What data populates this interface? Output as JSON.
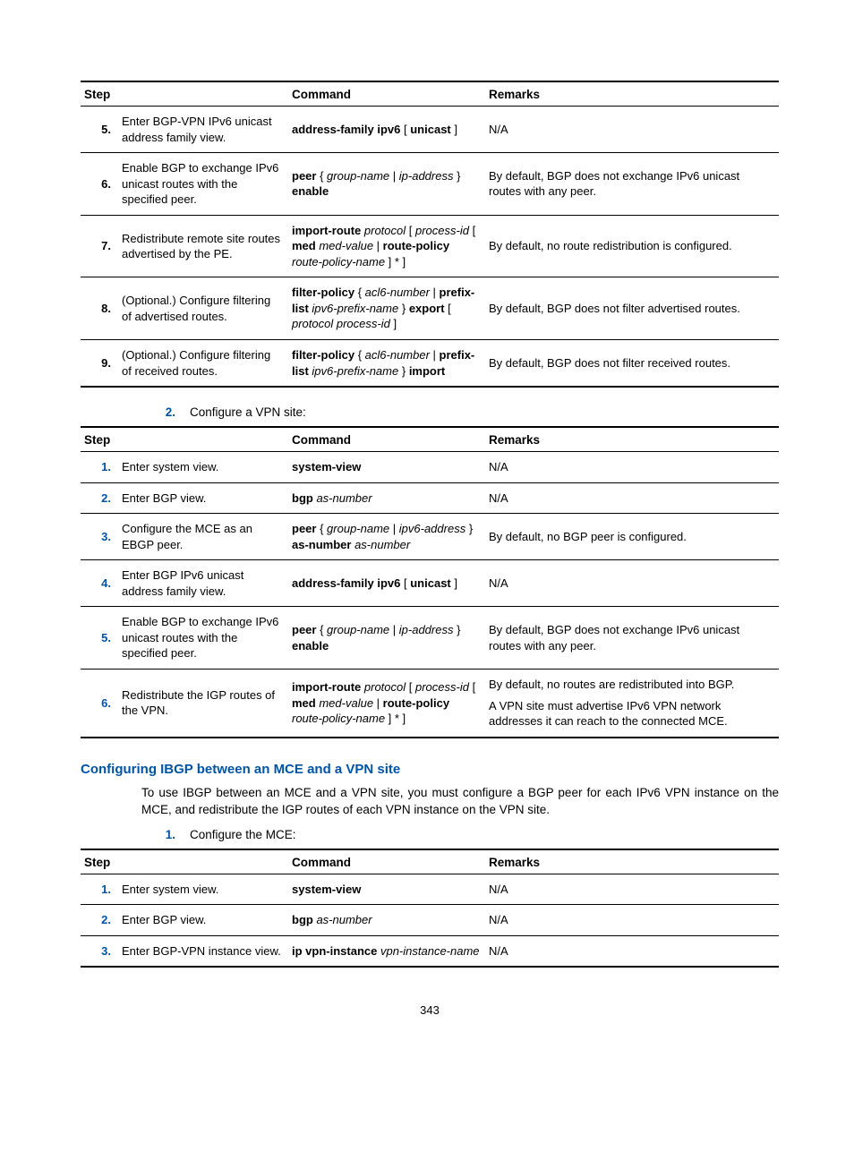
{
  "page_number": "343",
  "tables": [
    {
      "headers": {
        "step": "Step",
        "command": "Command",
        "remarks": "Remarks"
      },
      "rows": [
        {
          "num": "5.",
          "desc": "Enter BGP-VPN IPv6 unicast address family view.",
          "command_segments": [
            {
              "t": "address-family ipv6",
              "s": "bold"
            },
            {
              "t": " [ ",
              "s": ""
            },
            {
              "t": "unicast",
              "s": "bold"
            },
            {
              "t": " ]",
              "s": ""
            }
          ],
          "remarks": [
            {
              "line": "N/A"
            }
          ]
        },
        {
          "num": "6.",
          "desc": "Enable BGP to exchange IPv6 unicast routes with the specified peer.",
          "command_segments": [
            {
              "t": "peer",
              "s": "bold"
            },
            {
              "t": " { ",
              "s": ""
            },
            {
              "t": "group-name",
              "s": "ital"
            },
            {
              "t": " | ",
              "s": ""
            },
            {
              "t": "ip-address",
              "s": "ital"
            },
            {
              "t": " } ",
              "s": ""
            },
            {
              "t": "enable",
              "s": "bold"
            }
          ],
          "remarks": [
            {
              "line": "By default, BGP does not exchange IPv6 unicast routes with any peer."
            }
          ]
        },
        {
          "num": "7.",
          "desc": "Redistribute remote site routes advertised by the PE.",
          "command_segments": [
            {
              "t": "import-route",
              "s": "bold"
            },
            {
              "t": " protocol",
              "s": "ital"
            },
            {
              "t": " [ ",
              "s": ""
            },
            {
              "t": "process-id",
              "s": "ital"
            },
            {
              "t": " [ ",
              "s": ""
            },
            {
              "t": "med",
              "s": "bold"
            },
            {
              "t": " med-value",
              "s": "ital"
            },
            {
              "t": " | ",
              "s": ""
            },
            {
              "t": "route-policy",
              "s": "bold"
            },
            {
              "t": " route-policy-name",
              "s": "ital"
            },
            {
              "t": " ] * ]",
              "s": ""
            }
          ],
          "remarks": [
            {
              "line": "By default, no route redistribution is configured."
            }
          ]
        },
        {
          "num": "8.",
          "desc": "(Optional.) Configure filtering of advertised routes.",
          "command_segments": [
            {
              "t": "filter-policy",
              "s": "bold"
            },
            {
              "t": " { ",
              "s": ""
            },
            {
              "t": "acl6-number",
              "s": "ital"
            },
            {
              "t": " | ",
              "s": ""
            },
            {
              "t": "prefix-list",
              "s": "bold"
            },
            {
              "t": " ipv6-prefix-name",
              "s": "ital"
            },
            {
              "t": " } ",
              "s": ""
            },
            {
              "t": "export",
              "s": "bold"
            },
            {
              "t": " [ ",
              "s": ""
            },
            {
              "t": "protocol process-id",
              "s": "ital"
            },
            {
              "t": " ]",
              "s": ""
            }
          ],
          "remarks": [
            {
              "line": "By default, BGP does not filter advertised routes."
            }
          ]
        },
        {
          "num": "9.",
          "desc": "(Optional.) Configure filtering of received routes.",
          "command_segments": [
            {
              "t": "filter-policy",
              "s": "bold"
            },
            {
              "t": " { ",
              "s": ""
            },
            {
              "t": "acl6-number",
              "s": "ital"
            },
            {
              "t": " | ",
              "s": ""
            },
            {
              "t": "prefix-list",
              "s": "bold"
            },
            {
              "t": " ipv6-prefix-name",
              "s": "ital"
            },
            {
              "t": " } ",
              "s": ""
            },
            {
              "t": "import",
              "s": "bold"
            }
          ],
          "remarks": [
            {
              "line": "By default, BGP does not filter received routes."
            }
          ]
        }
      ]
    },
    {
      "headers": {
        "step": "Step",
        "command": "Command",
        "remarks": "Remarks"
      },
      "rows": [
        {
          "num": "1.",
          "num_blue": true,
          "desc": "Enter system view.",
          "command_segments": [
            {
              "t": "system-view",
              "s": "bold"
            }
          ],
          "remarks": [
            {
              "line": "N/A"
            }
          ]
        },
        {
          "num": "2.",
          "num_blue": true,
          "desc": "Enter BGP view.",
          "command_segments": [
            {
              "t": "bgp",
              "s": "bold"
            },
            {
              "t": " as-number",
              "s": "ital"
            }
          ],
          "remarks": [
            {
              "line": "N/A"
            }
          ]
        },
        {
          "num": "3.",
          "num_blue": true,
          "desc": "Configure the MCE as an EBGP peer.",
          "command_segments": [
            {
              "t": "peer",
              "s": "bold"
            },
            {
              "t": " { ",
              "s": ""
            },
            {
              "t": "group-name",
              "s": "ital"
            },
            {
              "t": " | ",
              "s": ""
            },
            {
              "t": "ipv6-address",
              "s": "ital"
            },
            {
              "t": " } ",
              "s": ""
            },
            {
              "t": "as-number",
              "s": "bold"
            },
            {
              "t": " as-number",
              "s": "ital"
            }
          ],
          "remarks": [
            {
              "line": "By default, no BGP peer is configured."
            }
          ]
        },
        {
          "num": "4.",
          "num_blue": true,
          "desc": "Enter BGP IPv6 unicast address family view.",
          "command_segments": [
            {
              "t": "address-family ipv6",
              "s": "bold"
            },
            {
              "t": " [ ",
              "s": ""
            },
            {
              "t": "unicast",
              "s": "bold"
            },
            {
              "t": " ]",
              "s": ""
            }
          ],
          "remarks": [
            {
              "line": "N/A"
            }
          ]
        },
        {
          "num": "5.",
          "num_blue": true,
          "desc": "Enable BGP to exchange IPv6 unicast routes with the specified peer.",
          "command_segments": [
            {
              "t": "peer",
              "s": "bold"
            },
            {
              "t": " { ",
              "s": ""
            },
            {
              "t": "group-name",
              "s": "ital"
            },
            {
              "t": " | ",
              "s": ""
            },
            {
              "t": "ip-address",
              "s": "ital"
            },
            {
              "t": " } ",
              "s": ""
            },
            {
              "t": "enable",
              "s": "bold"
            }
          ],
          "remarks": [
            {
              "line": "By default, BGP does not exchange IPv6 unicast routes with any peer."
            }
          ]
        },
        {
          "num": "6.",
          "num_blue": true,
          "desc": "Redistribute the IGP routes of the VPN.",
          "command_segments": [
            {
              "t": "import-route",
              "s": "bold"
            },
            {
              "t": " protocol",
              "s": "ital"
            },
            {
              "t": " [ ",
              "s": ""
            },
            {
              "t": "process-id",
              "s": "ital"
            },
            {
              "t": " [ ",
              "s": ""
            },
            {
              "t": "med",
              "s": "bold"
            },
            {
              "t": " med-value",
              "s": "ital"
            },
            {
              "t": " | ",
              "s": ""
            },
            {
              "t": "route-policy",
              "s": "bold"
            },
            {
              "t": " route-policy-name",
              "s": "ital"
            },
            {
              "t": " ] * ]",
              "s": ""
            }
          ],
          "remarks": [
            {
              "line": "By default, no routes are redistributed into BGP."
            },
            {
              "line": "A VPN site must advertise IPv6 VPN network addresses it can reach to the connected MCE."
            }
          ]
        }
      ]
    },
    {
      "headers": {
        "step": "Step",
        "command": "Command",
        "remarks": "Remarks"
      },
      "rows": [
        {
          "num": "1.",
          "num_blue": true,
          "desc": "Enter system view.",
          "command_segments": [
            {
              "t": "system-view",
              "s": "bold"
            }
          ],
          "remarks": [
            {
              "line": "N/A"
            }
          ]
        },
        {
          "num": "2.",
          "num_blue": true,
          "desc": "Enter BGP view.",
          "command_segments": [
            {
              "t": "bgp",
              "s": "bold"
            },
            {
              "t": " as-number",
              "s": "ital"
            }
          ],
          "remarks": [
            {
              "line": "N/A"
            }
          ]
        },
        {
          "num": "3.",
          "num_blue": true,
          "desc": "Enter BGP-VPN instance view.",
          "command_segments": [
            {
              "t": "ip vpn-instance",
              "s": "bold"
            },
            {
              "t": " vpn-instance-name",
              "s": "ital"
            }
          ],
          "remarks": [
            {
              "line": "N/A"
            }
          ]
        }
      ]
    }
  ],
  "ol_item_1": {
    "num": "2.",
    "text": "Configure a VPN site:"
  },
  "heading": "Configuring IBGP between an MCE and a VPN site",
  "para": "To use IBGP between an MCE and a VPN site, you must configure a BGP peer for each IPv6 VPN instance on the MCE, and redistribute the IGP routes of each VPN instance on the VPN site.",
  "ol_item_2": {
    "num": "1.",
    "text": "Configure the MCE:"
  }
}
